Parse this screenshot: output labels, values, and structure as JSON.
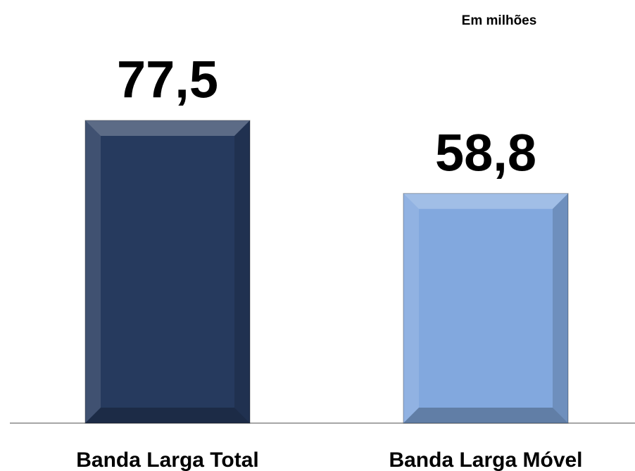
{
  "chart_data": {
    "type": "bar",
    "subtitle": "Em milhões",
    "categories": [
      "Banda Larga Total",
      "Banda Larga Móvel"
    ],
    "values": [
      77.5,
      58.8
    ],
    "value_labels": [
      "77,5",
      "58,8"
    ],
    "colors": [
      "#263a5e",
      "#82a8de"
    ]
  }
}
